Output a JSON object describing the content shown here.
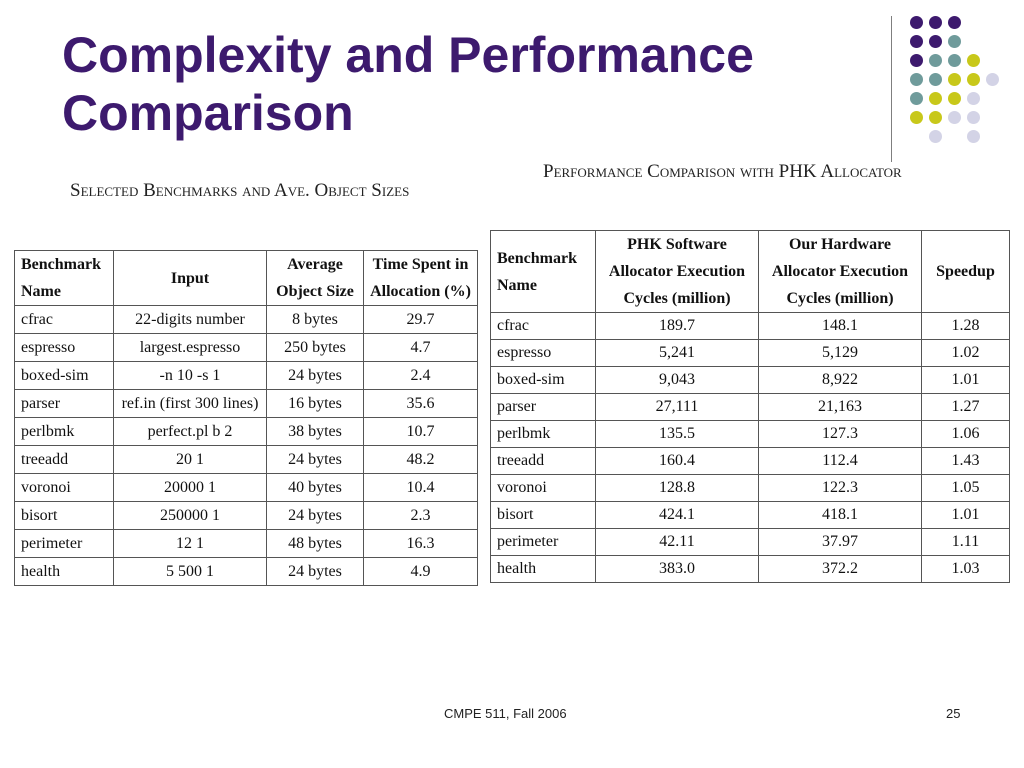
{
  "title_line1": "Complexity and Performance",
  "title_line2": "Comparison",
  "left_caption": "Selected Benchmarks and Ave. Object Sizes",
  "right_caption": "Performance Comparison with PHK Allocator",
  "left_table": {
    "headers": [
      "Benchmark Name",
      "Input",
      "Average Object Size",
      "Time Spent in Allocation (%)"
    ],
    "rows": [
      [
        "cfrac",
        "22-digits number",
        "8 bytes",
        "29.7"
      ],
      [
        "espresso",
        "largest.espresso",
        "250 bytes",
        "4.7"
      ],
      [
        "boxed-sim",
        "-n 10 -s 1",
        "24 bytes",
        "2.4"
      ],
      [
        "parser",
        "ref.in (first 300 lines)",
        "16 bytes",
        "35.6"
      ],
      [
        "perlbmk",
        "perfect.pl b 2",
        "38 bytes",
        "10.7"
      ],
      [
        "treeadd",
        "20 1",
        "24 bytes",
        "48.2"
      ],
      [
        "voronoi",
        "20000 1",
        "40 bytes",
        "10.4"
      ],
      [
        "bisort",
        "250000 1",
        "24 bytes",
        "2.3"
      ],
      [
        "perimeter",
        "12 1",
        "48 bytes",
        "16.3"
      ],
      [
        "health",
        "5 500 1",
        "24 bytes",
        "4.9"
      ]
    ]
  },
  "right_table": {
    "headers": [
      "Benchmark Name",
      "PHK Software Allocator Execution Cycles (million)",
      "Our Hardware Allocator Execution Cycles (million)",
      "Speedup"
    ],
    "rows": [
      [
        "cfrac",
        "189.7",
        "148.1",
        "1.28"
      ],
      [
        "espresso",
        "5,241",
        "5,129",
        "1.02"
      ],
      [
        "boxed-sim",
        "9,043",
        "8,922",
        "1.01"
      ],
      [
        "parser",
        "27,111",
        "21,163",
        "1.27"
      ],
      [
        "perlbmk",
        "135.5",
        "127.3",
        "1.06"
      ],
      [
        "treeadd",
        "160.4",
        "112.4",
        "1.43"
      ],
      [
        "voronoi",
        "128.8",
        "122.3",
        "1.05"
      ],
      [
        "bisort",
        "424.1",
        "418.1",
        "1.01"
      ],
      [
        "perimeter",
        "42.11",
        "37.97",
        "1.11"
      ],
      [
        "health",
        "383.0",
        "372.2",
        "1.03"
      ]
    ]
  },
  "footer_course": "CMPE  511, Fall 2006",
  "footer_page": "25",
  "colors": {
    "title": "#3d1a6e",
    "dot_purple": "#3d1a6e",
    "dot_teal": "#6f9b9b",
    "dot_yellow": "#c8c81a",
    "dot_lavender": "#d3d3e6"
  },
  "decoration_dot_grid": [
    [
      "purple",
      "purple",
      "purple",
      "",
      ""
    ],
    [
      "purple",
      "purple",
      "teal",
      "",
      ""
    ],
    [
      "purple",
      "teal",
      "teal",
      "yellow",
      ""
    ],
    [
      "teal",
      "teal",
      "yellow",
      "yellow",
      "lavender"
    ],
    [
      "teal",
      "yellow",
      "yellow",
      "lavender",
      ""
    ],
    [
      "yellow",
      "yellow",
      "lavender",
      "lavender",
      ""
    ],
    [
      "",
      "lavender",
      "",
      "lavender",
      ""
    ]
  ]
}
